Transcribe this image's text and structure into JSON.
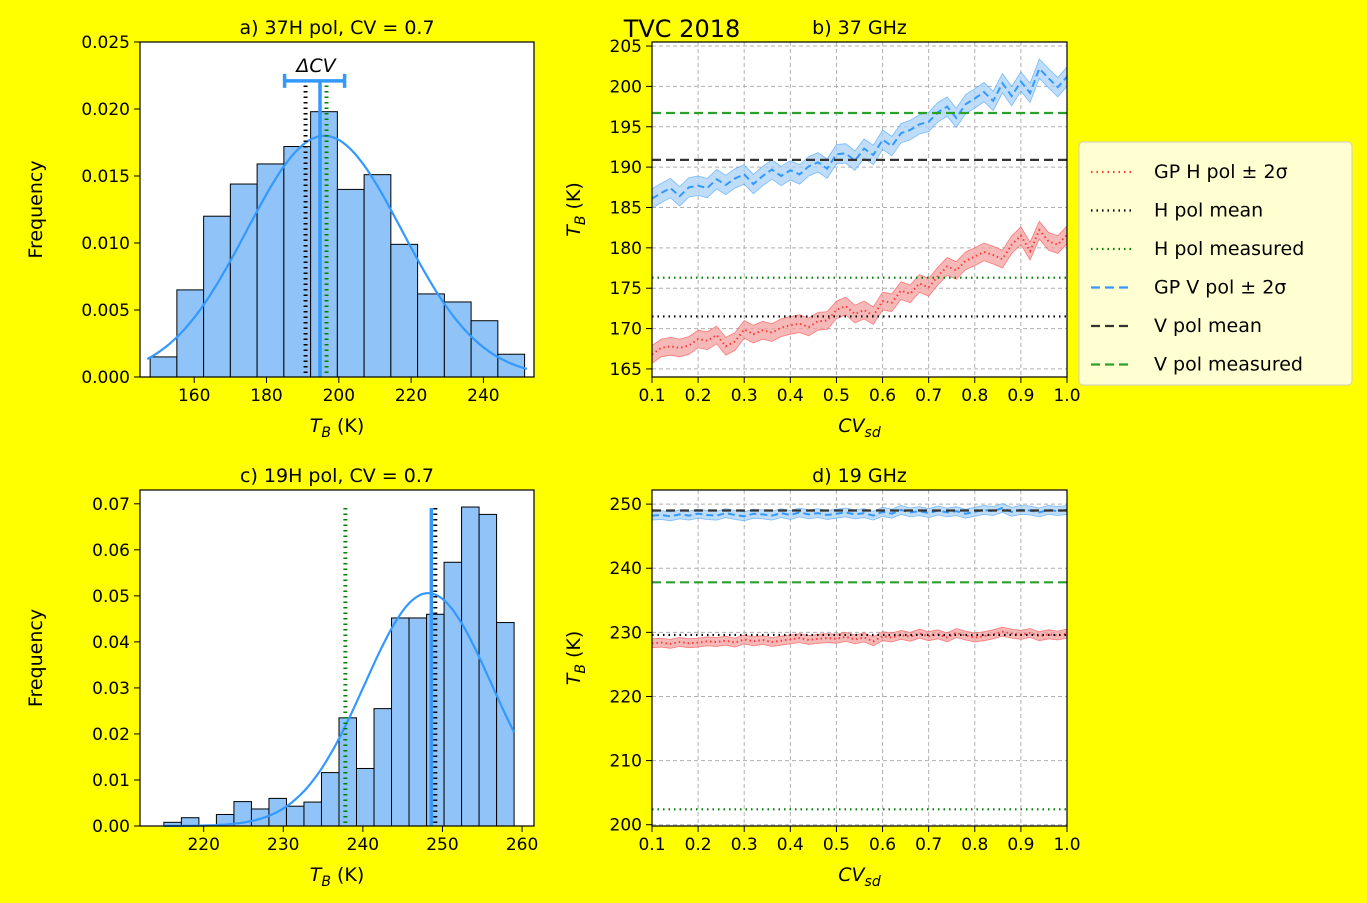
{
  "suptitle": "TVC 2018",
  "colors": {
    "background": "#ffff00",
    "bar": "#90c4f8",
    "blue": "#3399ff",
    "red": "#ff3b3b",
    "pink": "#f4a0a0",
    "lightblue": "#a9d1f7",
    "green": "#008000",
    "black": "#000000"
  },
  "legend": {
    "placement": "right of panel b",
    "entries": [
      {
        "label": "GP H pol ± 2σ",
        "style": "dotted",
        "color": "#ff3b3b"
      },
      {
        "label": "H pol mean",
        "style": "dotted",
        "color": "#000000"
      },
      {
        "label": "H pol measured",
        "style": "dotted",
        "color": "#008000"
      },
      {
        "label": "GP V pol ± 2σ",
        "style": "dashed",
        "color": "#3399ff"
      },
      {
        "label": "V pol mean",
        "style": "dashed",
        "color": "#333333"
      },
      {
        "label": "V pol measured",
        "style": "dashed",
        "color": "#2ca02c"
      }
    ]
  },
  "chart_data": [
    {
      "id": "a",
      "type": "bar",
      "title": "a) 37H pol, CV = 0.7",
      "xlabel": "T_B (K)",
      "ylabel": "Frequency",
      "xlim": [
        145,
        254
      ],
      "ylim": [
        0,
        0.025
      ],
      "xticks": [
        160,
        180,
        200,
        220,
        240
      ],
      "yticks": [
        "0.000",
        "0.005",
        "0.010",
        "0.015",
        "0.020",
        "0.025"
      ],
      "bins": [
        [
          147.8,
          155.2,
          0.0015
        ],
        [
          155.2,
          162.6,
          0.0065
        ],
        [
          162.6,
          170.0,
          0.012
        ],
        [
          170.0,
          177.4,
          0.0144
        ],
        [
          177.4,
          184.8,
          0.0159
        ],
        [
          184.8,
          192.2,
          0.0172
        ],
        [
          192.2,
          199.6,
          0.0198
        ],
        [
          199.6,
          207.0,
          0.014
        ],
        [
          207.0,
          214.4,
          0.0151
        ],
        [
          214.4,
          221.8,
          0.0099
        ],
        [
          221.8,
          229.2,
          0.0062
        ],
        [
          229.2,
          236.6,
          0.0056
        ],
        [
          236.6,
          244.0,
          0.0042
        ],
        [
          244.0,
          251.4,
          0.0017
        ]
      ],
      "fit": {
        "mean": 196,
        "sd": 21.5,
        "peak": 0.018,
        "range": [
          147,
          252
        ]
      },
      "vlines": [
        {
          "x": 190.8,
          "color": "#000000",
          "style": "dotted"
        },
        {
          "x": 196.6,
          "color": "#008000",
          "style": "dotted"
        },
        {
          "x": 194.8,
          "color": "#3399ff",
          "style": "solid"
        }
      ],
      "errorbar": {
        "x": 194.8,
        "y": 0.0221,
        "xmin": 185.0,
        "xmax": 201.6,
        "label": "ΔCV"
      },
      "grid": false
    },
    {
      "id": "b",
      "type": "line",
      "title": "b) 37 GHz",
      "xlabel": "CV_sd",
      "ylabel": "T_B (K)",
      "xlim": [
        0.1,
        1.0
      ],
      "ylim": [
        164,
        205.5
      ],
      "xticks": [
        "0.1",
        "0.2",
        "0.3",
        "0.4",
        "0.5",
        "0.6",
        "0.7",
        "0.8",
        "0.9",
        "1.0"
      ],
      "yticks": [
        165,
        170,
        175,
        180,
        185,
        190,
        195,
        200,
        205
      ],
      "grid": true,
      "x": [
        0.1,
        0.12,
        0.14,
        0.16,
        0.18,
        0.2,
        0.22,
        0.24,
        0.26,
        0.28,
        0.3,
        0.32,
        0.34,
        0.36,
        0.38,
        0.4,
        0.42,
        0.44,
        0.46,
        0.48,
        0.5,
        0.52,
        0.54,
        0.56,
        0.58,
        0.6,
        0.62,
        0.64,
        0.66,
        0.68,
        0.7,
        0.72,
        0.74,
        0.76,
        0.78,
        0.8,
        0.82,
        0.84,
        0.86,
        0.88,
        0.9,
        0.92,
        0.94,
        0.96,
        0.98,
        1.0
      ],
      "series": [
        {
          "name": "GP H pol ± 2σ",
          "color": "#ff3b3b",
          "band_color": "#f4a0a0",
          "band": 1.1,
          "values": [
            166.8,
            167.6,
            167.8,
            167.6,
            167.9,
            168.7,
            168.5,
            169.2,
            167.8,
            168.4,
            169.9,
            169.3,
            169.8,
            169.5,
            170.1,
            170.4,
            170.6,
            170.2,
            170.9,
            171.0,
            172.3,
            172.8,
            171.8,
            172.3,
            171.6,
            173.4,
            173.2,
            174.7,
            174.3,
            175.6,
            175.1,
            176.5,
            177.7,
            177.2,
            178.4,
            178.9,
            179.5,
            179.1,
            178.6,
            180.4,
            181.5,
            179.6,
            182.2,
            180.8,
            180.4,
            181.6
          ]
        },
        {
          "name": "GP V pol ± 2σ",
          "color": "#3399ff",
          "band_color": "#a9d1f7",
          "band": 1.2,
          "values": [
            186.1,
            186.8,
            187.4,
            186.4,
            187.5,
            187.7,
            187.4,
            188.5,
            187.8,
            188.6,
            189.1,
            187.9,
            188.9,
            189.7,
            188.9,
            189.6,
            189.1,
            190.1,
            190.6,
            189.8,
            191.6,
            191.7,
            190.8,
            192.3,
            191.5,
            193.4,
            192.6,
            194.2,
            194.6,
            195.3,
            195.6,
            196.8,
            197.5,
            196.1,
            197.8,
            198.5,
            199.3,
            198.2,
            200.4,
            198.8,
            200.6,
            199.2,
            202.2,
            201.0,
            199.9,
            201.2
          ]
        }
      ],
      "hlines": [
        {
          "name": "H pol mean",
          "y": 171.5,
          "color": "#000000",
          "style": "dotted"
        },
        {
          "name": "H pol measured",
          "y": 176.3,
          "color": "#008000",
          "style": "dotted"
        },
        {
          "name": "V pol mean",
          "y": 190.9,
          "color": "#333333",
          "style": "dashed"
        },
        {
          "name": "V pol measured",
          "y": 196.7,
          "color": "#2ca02c",
          "style": "dashed"
        }
      ]
    },
    {
      "id": "c",
      "type": "bar",
      "title": "c) 19H pol, CV = 0.7",
      "xlabel": "T_B (K)",
      "ylabel": "Frequency",
      "xlim": [
        212,
        261.5
      ],
      "ylim": [
        0,
        0.073
      ],
      "xticks": [
        220,
        230,
        240,
        250,
        260
      ],
      "yticks": [
        "0.00",
        "0.01",
        "0.02",
        "0.03",
        "0.04",
        "0.05",
        "0.06",
        "0.07"
      ],
      "bins": [
        [
          215.0,
          217.2,
          0.0008
        ],
        [
          217.2,
          219.4,
          0.0018
        ],
        [
          219.4,
          221.6,
          0.0
        ],
        [
          221.6,
          223.8,
          0.0025
        ],
        [
          223.8,
          226.0,
          0.0053
        ],
        [
          226.0,
          228.2,
          0.0037
        ],
        [
          228.2,
          230.4,
          0.006
        ],
        [
          230.4,
          232.6,
          0.0043
        ],
        [
          232.6,
          234.8,
          0.0052
        ],
        [
          234.8,
          237.0,
          0.0116
        ],
        [
          237.0,
          239.2,
          0.0235
        ],
        [
          239.2,
          241.4,
          0.0125
        ],
        [
          241.4,
          243.6,
          0.0255
        ],
        [
          243.6,
          245.8,
          0.0452
        ],
        [
          245.8,
          248.0,
          0.0452
        ],
        [
          248.0,
          250.2,
          0.046
        ],
        [
          250.2,
          252.4,
          0.0573
        ],
        [
          252.4,
          254.6,
          0.0693
        ],
        [
          254.6,
          256.8,
          0.0677
        ],
        [
          256.8,
          259.0,
          0.0442
        ]
      ],
      "fit": {
        "mean": 248.2,
        "sd": 8.0,
        "peak": 0.0506,
        "range": [
          215,
          259
        ]
      },
      "vlines": [
        {
          "x": 237.8,
          "color": "#008000",
          "style": "dotted"
        },
        {
          "x": 248.6,
          "color": "#3399ff",
          "style": "solid"
        },
        {
          "x": 249.1,
          "color": "#000000",
          "style": "dotted"
        }
      ],
      "grid": false
    },
    {
      "id": "d",
      "type": "line",
      "title": "d) 19 GHz",
      "xlabel": "CV_sd",
      "ylabel": "T_B (K)",
      "xlim": [
        0.1,
        1.0
      ],
      "ylim": [
        199.8,
        252.2
      ],
      "xticks": [
        "0.1",
        "0.2",
        "0.3",
        "0.4",
        "0.5",
        "0.6",
        "0.7",
        "0.8",
        "0.9",
        "1.0"
      ],
      "yticks": [
        200,
        210,
        220,
        230,
        240,
        250
      ],
      "grid": true,
      "x": [
        0.1,
        0.12,
        0.14,
        0.16,
        0.18,
        0.2,
        0.22,
        0.24,
        0.26,
        0.28,
        0.3,
        0.32,
        0.34,
        0.36,
        0.38,
        0.4,
        0.42,
        0.44,
        0.46,
        0.48,
        0.5,
        0.52,
        0.54,
        0.56,
        0.58,
        0.6,
        0.62,
        0.64,
        0.66,
        0.68,
        0.7,
        0.72,
        0.74,
        0.76,
        0.78,
        0.8,
        0.82,
        0.84,
        0.86,
        0.88,
        0.9,
        0.92,
        0.94,
        0.96,
        0.98,
        1.0
      ],
      "series": [
        {
          "name": "GP H pol ± 2σ",
          "color": "#ff3b3b",
          "band_color": "#f4a0a0",
          "band": 0.7,
          "values": [
            228.3,
            228.4,
            228.2,
            228.5,
            228.3,
            228.4,
            228.6,
            228.5,
            228.7,
            228.4,
            228.9,
            228.6,
            228.8,
            228.5,
            228.7,
            228.9,
            229.1,
            228.8,
            229.0,
            229.1,
            229.0,
            229.3,
            228.9,
            229.2,
            228.6,
            229.4,
            229.2,
            229.6,
            229.3,
            229.8,
            229.4,
            229.7,
            229.2,
            229.9,
            229.5,
            229.2,
            229.4,
            229.7,
            230.1,
            229.8,
            229.6,
            229.9,
            229.4,
            229.7,
            229.5,
            229.8
          ]
        },
        {
          "name": "GP V pol ± 2σ",
          "color": "#3399ff",
          "band_color": "#a9d1f7",
          "band": 0.7,
          "values": [
            248.2,
            248.3,
            248.1,
            248.4,
            248.2,
            248.5,
            248.3,
            248.2,
            248.6,
            248.3,
            248.1,
            248.5,
            248.4,
            248.2,
            248.6,
            248.3,
            248.7,
            248.4,
            248.6,
            248.3,
            248.5,
            248.7,
            248.4,
            248.6,
            248.2,
            248.8,
            248.5,
            249.1,
            248.7,
            248.9,
            248.6,
            249.0,
            248.7,
            248.9,
            248.5,
            248.8,
            249.1,
            248.9,
            249.4,
            248.8,
            249.1,
            249.0,
            248.7,
            249.1,
            248.9,
            249.1
          ]
        }
      ],
      "hlines": [
        {
          "name": "H pol mean",
          "y": 229.6,
          "color": "#000000",
          "style": "dotted"
        },
        {
          "name": "H pol measured",
          "y": 202.4,
          "color": "#008000",
          "style": "dotted"
        },
        {
          "name": "V pol mean",
          "y": 249.0,
          "color": "#333333",
          "style": "dashed"
        },
        {
          "name": "V pol measured",
          "y": 237.8,
          "color": "#2ca02c",
          "style": "dashed"
        }
      ]
    }
  ]
}
